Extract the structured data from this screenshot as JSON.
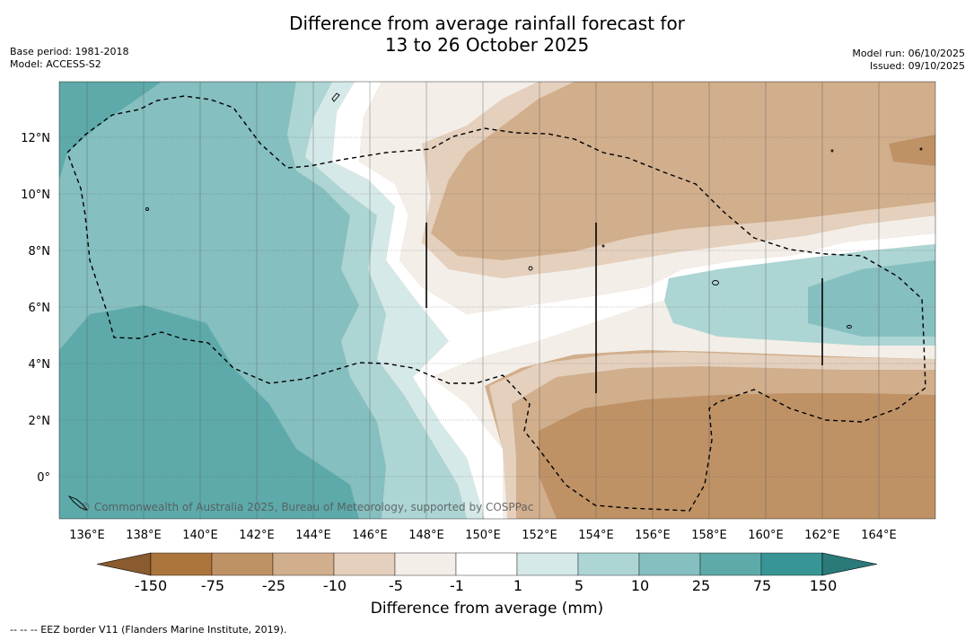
{
  "title": {
    "line1": "Difference from average rainfall forecast for",
    "line2": "13 to 26 October 2025"
  },
  "meta": {
    "base_period": "Base period: 1981-2018",
    "model": "Model: ACCESS-S2",
    "model_run": "Model run: 06/10/2025",
    "issued": "Issued: 09/10/2025"
  },
  "map": {
    "lon_labels": [
      "136°E",
      "138°E",
      "140°E",
      "142°E",
      "144°E",
      "146°E",
      "148°E",
      "150°E",
      "152°E",
      "154°E",
      "156°E",
      "158°E",
      "160°E",
      "162°E",
      "164°E"
    ],
    "lat_labels": [
      "12°N",
      "10°N",
      "8°N",
      "6°N",
      "4°N",
      "2°N",
      "0°"
    ],
    "lon_range": [
      135,
      166.1
    ],
    "lat_range": [
      -1.5,
      14
    ],
    "copyright": "© Commonwealth of Australia 2025, Bureau of Meteorology, supported by COSPPac"
  },
  "colorbar": {
    "title": "Difference from average (mm)",
    "labels": [
      "-150",
      "-75",
      "-25",
      "-10",
      "-5",
      "-1",
      "1",
      "5",
      "10",
      "25",
      "75",
      "150"
    ],
    "colors": [
      "#ac753b",
      "#bf9266",
      "#d1ae8c",
      "#e4d0bd",
      "#f3eee8",
      "#ffffff",
      "#d5e9e8",
      "#acd5d4",
      "#85bfbf",
      "#5eaaaa",
      "#379695"
    ],
    "extend_low_color": "#8a5b2e",
    "extend_high_color": "#2a7a79"
  },
  "legend": {
    "eez_note": "--  --  -- EEZ border V11 (Flanders Marine Institute, 2019)."
  }
}
